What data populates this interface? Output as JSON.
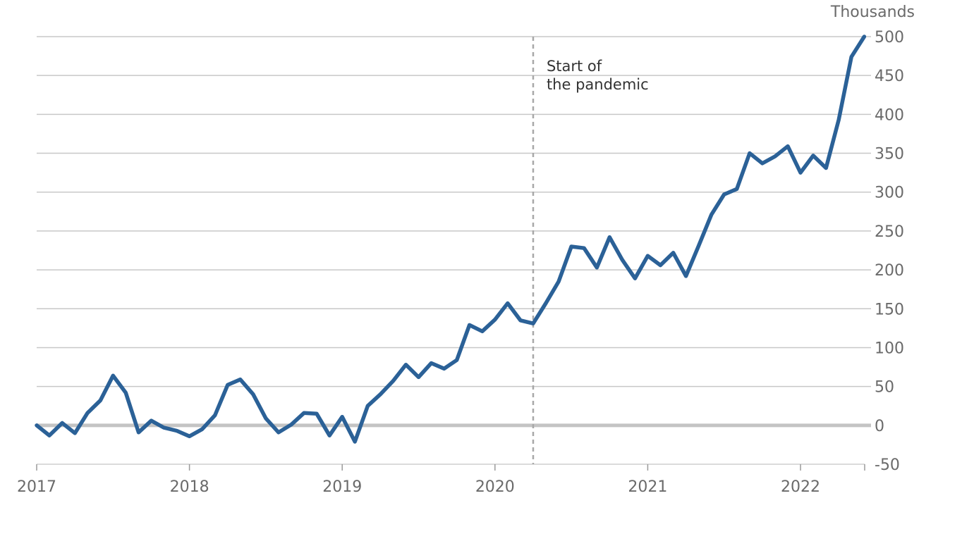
{
  "chart_data": {
    "type": "line",
    "title": "",
    "xlabel": "",
    "ylabel": "Thousands",
    "ylim": [
      -50,
      500
    ],
    "y_ticks": [
      500,
      450,
      400,
      350,
      300,
      250,
      200,
      150,
      100,
      50,
      0,
      -50
    ],
    "x_ticks": [
      "2017",
      "2018",
      "2019",
      "2020",
      "2021",
      "2022"
    ],
    "xlim": [
      2017.0,
      2022.42
    ],
    "grid": true,
    "line_color": "#2b6197",
    "event_line": {
      "x": 2020.25,
      "label_lines": [
        "Start of",
        "the pandemic"
      ]
    },
    "series": [
      {
        "x": [
          2017.0,
          2017.083,
          2017.167,
          2017.25,
          2017.333,
          2017.417,
          2017.5,
          2017.583,
          2017.667,
          2017.75,
          2017.833,
          2017.917,
          2018.0,
          2018.083,
          2018.167,
          2018.25,
          2018.333,
          2018.417,
          2018.5,
          2018.583,
          2018.667,
          2018.75,
          2018.833,
          2018.917,
          2019.0,
          2019.083,
          2019.167,
          2019.25,
          2019.333,
          2019.417,
          2019.5,
          2019.583,
          2019.667,
          2019.75,
          2019.833,
          2019.917,
          2020.0,
          2020.083,
          2020.167,
          2020.25,
          2020.333,
          2020.417,
          2020.5,
          2020.583,
          2020.667,
          2020.75,
          2020.833,
          2020.917,
          2021.0,
          2021.083,
          2021.167,
          2021.25,
          2021.333,
          2021.417,
          2021.5,
          2021.583,
          2021.667,
          2021.75,
          2021.833,
          2021.917,
          2022.0,
          2022.083,
          2022.167,
          2022.25,
          2022.333,
          2022.417
        ],
        "values": [
          0,
          -13,
          3,
          -10,
          16,
          32,
          64,
          42,
          -9,
          6,
          -3,
          -7,
          -14,
          -5,
          13,
          52,
          59,
          40,
          9,
          -9,
          1,
          16,
          15,
          -13,
          11,
          -21,
          25,
          40,
          57,
          78,
          62,
          80,
          73,
          84,
          129,
          121,
          136,
          157,
          135,
          131,
          157,
          185,
          230,
          228,
          203,
          242,
          213,
          189,
          218,
          206,
          222,
          192,
          231,
          271,
          297,
          304,
          350,
          337,
          346,
          359,
          325,
          347,
          331,
          393,
          474,
          500
        ]
      }
    ]
  }
}
